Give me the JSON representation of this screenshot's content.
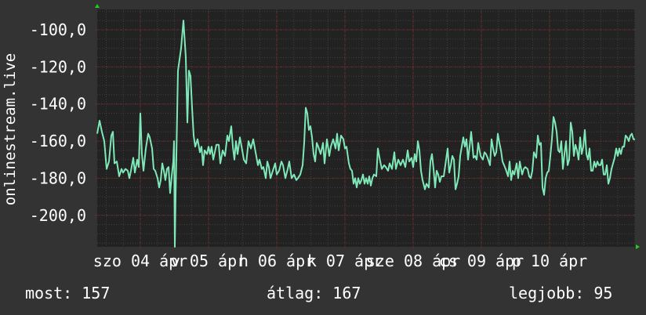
{
  "chart_data": {
    "type": "line",
    "title": "",
    "ylabel": "onlinestream.live",
    "xlabel": "",
    "ylim": [
      -217,
      -89
    ],
    "yticks": [
      -100,
      -120,
      -140,
      -160,
      -180,
      -200
    ],
    "ytick_labels": [
      "-100,0",
      "-120,0",
      "-140,0",
      "-160,0",
      "-180,0",
      "-200,0"
    ],
    "xlim": [
      0,
      686
    ],
    "x_tick_labels": [
      {
        "x": 55,
        "label": "szo 04 ápr"
      },
      {
        "x": 142,
        "label": "v 05 ápr"
      },
      {
        "x": 229,
        "label": "h 06 ápr"
      },
      {
        "x": 316,
        "label": "k 07 ápr"
      },
      {
        "x": 403,
        "label": "sze 08 ápr"
      },
      {
        "x": 490,
        "label": "cs 09 ápr"
      },
      {
        "x": 577,
        "label": "p 10 ápr"
      }
    ],
    "grid": true,
    "series": [
      {
        "color": "#7fe8b8",
        "points": [
          [
            0,
            -156
          ],
          [
            3,
            -149
          ],
          [
            6,
            -155
          ],
          [
            9,
            -160
          ],
          [
            12,
            -175
          ],
          [
            15,
            -171
          ],
          [
            18,
            -157
          ],
          [
            20,
            -155
          ],
          [
            22,
            -172
          ],
          [
            25,
            -171
          ],
          [
            28,
            -179
          ],
          [
            31,
            -175
          ],
          [
            33,
            -177
          ],
          [
            36,
            -175
          ],
          [
            39,
            -176
          ],
          [
            41,
            -180
          ],
          [
            43,
            -176
          ],
          [
            46,
            -169
          ],
          [
            48,
            -177
          ],
          [
            51,
            -170
          ],
          [
            53,
            -174
          ],
          [
            55,
            -145
          ],
          [
            57,
            -167
          ],
          [
            59,
            -176
          ],
          [
            62,
            -164
          ],
          [
            65,
            -156
          ],
          [
            67,
            -158
          ],
          [
            70,
            -164
          ],
          [
            72,
            -175
          ],
          [
            74,
            -176
          ],
          [
            77,
            -180
          ],
          [
            79,
            -185
          ],
          [
            81,
            -181
          ],
          [
            83,
            -172
          ],
          [
            85,
            -176
          ],
          [
            87,
            -181
          ],
          [
            89,
            -175
          ],
          [
            91,
            -174
          ],
          [
            93,
            -188
          ],
          [
            95,
            -179
          ],
          [
            97,
            -171
          ],
          [
            98,
            -160
          ],
          [
            99,
            -217
          ],
          [
            100,
            -190
          ],
          [
            103,
            -122
          ],
          [
            107,
            -110
          ],
          [
            110,
            -95
          ],
          [
            113,
            -115
          ],
          [
            115,
            -150
          ],
          [
            117,
            -122
          ],
          [
            119,
            -125
          ],
          [
            121,
            -142
          ],
          [
            123,
            -157
          ],
          [
            125,
            -163
          ],
          [
            128,
            -159
          ],
          [
            131,
            -166
          ],
          [
            133,
            -163
          ],
          [
            135,
            -173
          ],
          [
            137,
            -165
          ],
          [
            140,
            -167
          ],
          [
            142,
            -163
          ],
          [
            144,
            -167
          ],
          [
            146,
            -163
          ],
          [
            148,
            -170
          ],
          [
            150,
            -166
          ],
          [
            152,
            -162
          ],
          [
            155,
            -162
          ],
          [
            157,
            -172
          ],
          [
            160,
            -165
          ],
          [
            163,
            -168
          ],
          [
            166,
            -157
          ],
          [
            168,
            -160
          ],
          [
            171,
            -152
          ],
          [
            173,
            -163
          ],
          [
            175,
            -170
          ],
          [
            177,
            -160
          ],
          [
            179,
            -167
          ],
          [
            182,
            -158
          ],
          [
            185,
            -165
          ],
          [
            187,
            -170
          ],
          [
            190,
            -172
          ],
          [
            193,
            -160
          ],
          [
            196,
            -164
          ],
          [
            199,
            -159
          ],
          [
            202,
            -166
          ],
          [
            205,
            -173
          ],
          [
            207,
            -170
          ],
          [
            210,
            -175
          ],
          [
            212,
            -174
          ],
          [
            215,
            -180
          ],
          [
            217,
            -171
          ],
          [
            219,
            -174
          ],
          [
            221,
            -180
          ],
          [
            224,
            -176
          ],
          [
            227,
            -172
          ],
          [
            229,
            -178
          ],
          [
            232,
            -176
          ],
          [
            235,
            -171
          ],
          [
            237,
            -173
          ],
          [
            240,
            -180
          ],
          [
            243,
            -175
          ],
          [
            245,
            -171
          ],
          [
            248,
            -180
          ],
          [
            251,
            -178
          ],
          [
            254,
            -181
          ],
          [
            256,
            -180
          ],
          [
            259,
            -178
          ],
          [
            262,
            -173
          ],
          [
            264,
            -161
          ],
          [
            266,
            -142
          ],
          [
            268,
            -145
          ],
          [
            270,
            -154
          ],
          [
            272,
            -152
          ],
          [
            274,
            -158
          ],
          [
            276,
            -167
          ],
          [
            278,
            -171
          ],
          [
            280,
            -161
          ],
          [
            282,
            -163
          ],
          [
            285,
            -167
          ],
          [
            288,
            -161
          ],
          [
            290,
            -172
          ],
          [
            293,
            -159
          ],
          [
            296,
            -168
          ],
          [
            298,
            -163
          ],
          [
            301,
            -159
          ],
          [
            304,
            -164
          ],
          [
            306,
            -156
          ],
          [
            308,
            -165
          ],
          [
            311,
            -157
          ],
          [
            314,
            -159
          ],
          [
            316,
            -164
          ],
          [
            318,
            -163
          ],
          [
            321,
            -172
          ],
          [
            323,
            -175
          ],
          [
            325,
            -176
          ],
          [
            327,
            -183
          ],
          [
            329,
            -180
          ],
          [
            331,
            -185
          ],
          [
            333,
            -180
          ],
          [
            335,
            -183
          ],
          [
            337,
            -181
          ],
          [
            339,
            -178
          ],
          [
            341,
            -183
          ],
          [
            343,
            -180
          ],
          [
            345,
            -183
          ],
          [
            347,
            -179
          ],
          [
            349,
            -184
          ],
          [
            351,
            -180
          ],
          [
            353,
            -178
          ],
          [
            356,
            -179
          ],
          [
            358,
            -164
          ],
          [
            361,
            -171
          ],
          [
            363,
            -175
          ],
          [
            366,
            -173
          ],
          [
            368,
            -174
          ],
          [
            371,
            -176
          ],
          [
            373,
            -172
          ],
          [
            376,
            -175
          ],
          [
            379,
            -166
          ],
          [
            381,
            -175
          ],
          [
            384,
            -170
          ],
          [
            387,
            -173
          ],
          [
            390,
            -170
          ],
          [
            393,
            -174
          ],
          [
            396,
            -165
          ],
          [
            398,
            -171
          ],
          [
            401,
            -169
          ],
          [
            403,
            -174
          ],
          [
            405,
            -167
          ],
          [
            407,
            -171
          ],
          [
            409,
            -160
          ],
          [
            411,
            -165
          ],
          [
            413,
            -176
          ],
          [
            415,
            -181
          ],
          [
            418,
            -186
          ],
          [
            420,
            -183
          ],
          [
            423,
            -185
          ],
          [
            425,
            -171
          ],
          [
            427,
            -167
          ],
          [
            429,
            -175
          ],
          [
            431,
            -185
          ],
          [
            433,
            -176
          ],
          [
            435,
            -178
          ],
          [
            437,
            -182
          ],
          [
            439,
            -179
          ],
          [
            442,
            -179
          ],
          [
            444,
            -173
          ],
          [
            447,
            -164
          ],
          [
            449,
            -177
          ],
          [
            451,
            -173
          ],
          [
            453,
            -168
          ],
          [
            455,
            -170
          ],
          [
            457,
            -186
          ],
          [
            459,
            -183
          ],
          [
            461,
            -179
          ],
          [
            463,
            -168
          ],
          [
            465,
            -163
          ],
          [
            467,
            -158
          ],
          [
            469,
            -163
          ],
          [
            471,
            -159
          ],
          [
            473,
            -170
          ],
          [
            475,
            -163
          ],
          [
            477,
            -155
          ],
          [
            480,
            -169
          ],
          [
            482,
            -168
          ],
          [
            484,
            -170
          ],
          [
            486,
            -161
          ],
          [
            489,
            -168
          ],
          [
            492,
            -170
          ],
          [
            494,
            -166
          ],
          [
            496,
            -167
          ],
          [
            498,
            -169
          ],
          [
            501,
            -173
          ],
          [
            503,
            -159
          ],
          [
            505,
            -164
          ],
          [
            507,
            -168
          ],
          [
            509,
            -166
          ],
          [
            511,
            -156
          ],
          [
            513,
            -161
          ],
          [
            515,
            -165
          ],
          [
            517,
            -171
          ],
          [
            519,
            -173
          ],
          [
            521,
            -175
          ],
          [
            524,
            -179
          ],
          [
            526,
            -171
          ],
          [
            528,
            -181
          ],
          [
            530,
            -176
          ],
          [
            532,
            -178
          ],
          [
            535,
            -172
          ],
          [
            537,
            -180
          ],
          [
            539,
            -171
          ],
          [
            542,
            -178
          ],
          [
            544,
            -175
          ],
          [
            546,
            -174
          ],
          [
            549,
            -175
          ],
          [
            551,
            -179
          ],
          [
            553,
            -180
          ],
          [
            555,
            -176
          ],
          [
            557,
            -166
          ],
          [
            560,
            -169
          ],
          [
            562,
            -157
          ],
          [
            564,
            -162
          ],
          [
            566,
            -161
          ],
          [
            568,
            -185
          ],
          [
            570,
            -189
          ],
          [
            572,
            -180
          ],
          [
            574,
            -177
          ],
          [
            576,
            -176
          ],
          [
            578,
            -168
          ],
          [
            580,
            -159
          ],
          [
            582,
            -147
          ],
          [
            584,
            -150
          ],
          [
            586,
            -155
          ],
          [
            588,
            -165
          ],
          [
            590,
            -166
          ],
          [
            592,
            -160
          ],
          [
            594,
            -175
          ],
          [
            596,
            -167
          ],
          [
            598,
            -160
          ],
          [
            600,
            -173
          ],
          [
            602,
            -170
          ],
          [
            604,
            -150
          ],
          [
            606,
            -155
          ],
          [
            608,
            -168
          ],
          [
            610,
            -162
          ],
          [
            612,
            -165
          ],
          [
            614,
            -170
          ],
          [
            616,
            -158
          ],
          [
            618,
            -167
          ],
          [
            620,
            -163
          ],
          [
            622,
            -154
          ],
          [
            624,
            -167
          ],
          [
            626,
            -170
          ],
          [
            628,
            -164
          ],
          [
            630,
            -176
          ],
          [
            632,
            -176
          ],
          [
            634,
            -171
          ],
          [
            636,
            -174
          ],
          [
            638,
            -171
          ],
          [
            640,
            -173
          ],
          [
            642,
            -173
          ],
          [
            644,
            -170
          ],
          [
            646,
            -178
          ],
          [
            648,
            -178
          ],
          [
            650,
            -173
          ],
          [
            652,
            -183
          ],
          [
            654,
            -180
          ],
          [
            656,
            -175
          ],
          [
            658,
            -172
          ],
          [
            660,
            -169
          ],
          [
            662,
            -164
          ],
          [
            664,
            -168
          ],
          [
            666,
            -164
          ],
          [
            668,
            -167
          ],
          [
            670,
            -163
          ],
          [
            672,
            -163
          ],
          [
            674,
            -157
          ],
          [
            676,
            -158
          ],
          [
            678,
            -160
          ],
          [
            680,
            -157
          ],
          [
            682,
            -156
          ],
          [
            684,
            -159
          ],
          [
            686,
            -159
          ]
        ]
      }
    ]
  },
  "footer": {
    "current": "most: 157",
    "average": "átlag: 167",
    "best": "legjobb: 95"
  },
  "colors": {
    "background": "#333333",
    "plot_background": "#222222",
    "grid_minor": "#3f3f3f",
    "grid_major": "#7a2a2a",
    "line": "#7fe8b8",
    "axis_arrow": "#22cc22"
  }
}
